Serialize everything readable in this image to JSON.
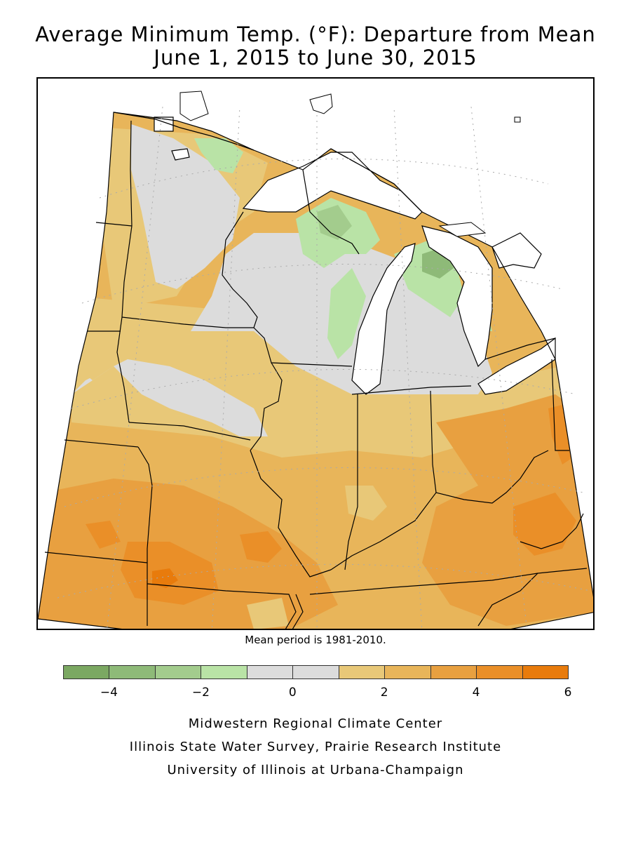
{
  "title": {
    "line1": "Average Minimum Temp. (°F): Departure from Mean",
    "line2": "June 1, 2015 to June 30, 2015"
  },
  "note": "Mean period is 1981-2010.",
  "legend": {
    "colors": [
      "#7ba862",
      "#8eba78",
      "#a3cc8d",
      "#b9e3a6",
      "#dcdcdc",
      "#dcdcdc",
      "#e8c878",
      "#e8b55a",
      "#e8a040",
      "#ea8f28",
      "#e87b0c"
    ],
    "ticks": [
      {
        "label": "−4",
        "index": 1
      },
      {
        "label": "−2",
        "index": 3
      },
      {
        "label": "0",
        "index": 5
      },
      {
        "label": "2",
        "index": 7
      },
      {
        "label": "4",
        "index": 9
      },
      {
        "label": "6",
        "index": 11
      }
    ]
  },
  "credits": [
    "Midwestern Regional Climate Center",
    "Illinois State Water Survey, Prairie Research Institute",
    "University of Illinois at Urbana-Champaign"
  ],
  "map": {
    "colors": {
      "neutral": "#dcdcdc",
      "warm1": "#e8c878",
      "warm2": "#e8b55a",
      "warm3": "#e8a040",
      "warm4": "#ea8f28",
      "warm5": "#e87b0c",
      "cool1": "#b9e3a6",
      "cool2": "#a3cc8d",
      "cool3": "#8eba78",
      "water": "#ffffff",
      "border": "#000000"
    }
  }
}
